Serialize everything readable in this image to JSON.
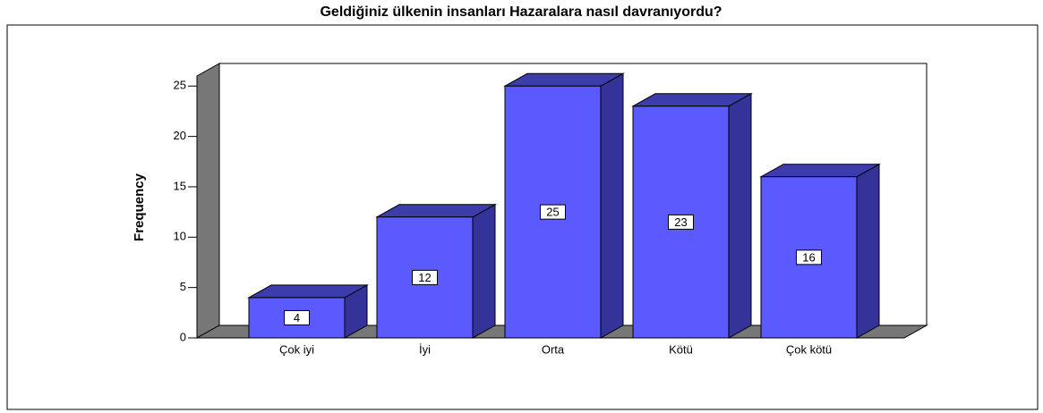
{
  "chart_data": {
    "type": "bar3d",
    "title": "Geldiğiniz ülkenin insanları Hazaralara nasıl davranıyordu?",
    "y_label": "Frequency",
    "categories": [
      "Çok iyi",
      "İyi",
      "Orta",
      "Kötü",
      "Çok kötü"
    ],
    "values": [
      4,
      12,
      25,
      23,
      16
    ],
    "color": "#5a5aff",
    "ylim": [
      0,
      26
    ],
    "yticks": [
      0,
      5,
      10,
      15,
      20,
      25
    ]
  }
}
